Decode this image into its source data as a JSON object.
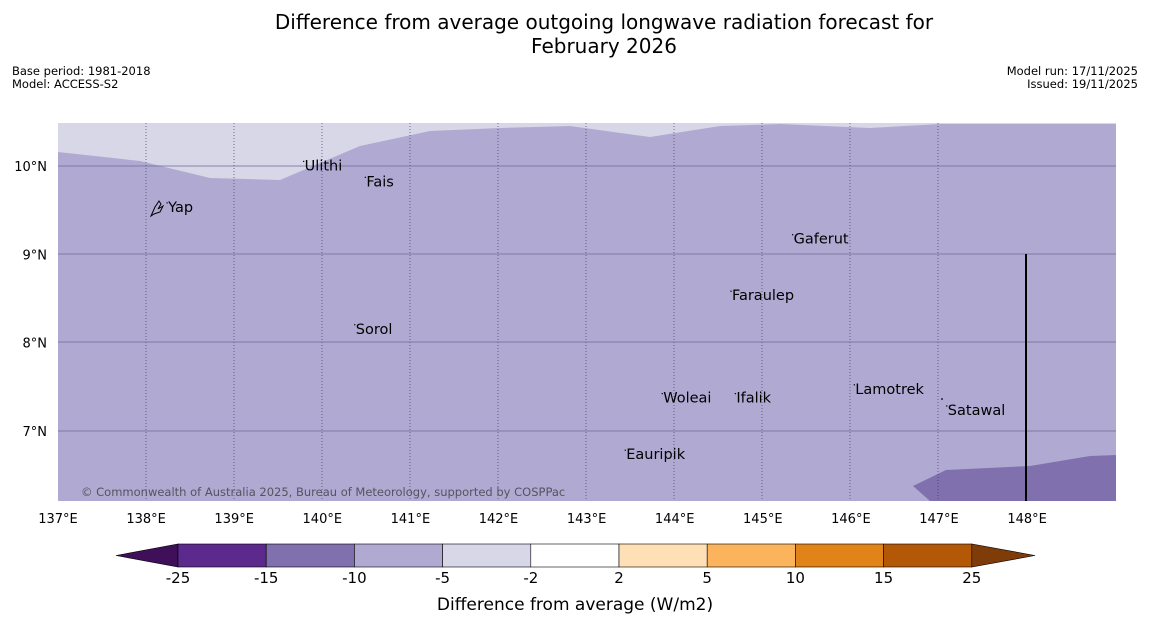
{
  "title": {
    "line1": "Difference from average outgoing longwave radiation forecast for",
    "line2": "February 2026"
  },
  "meta": {
    "base_period": "Base period: 1981-2018",
    "model": "Model: ACCESS-S2",
    "model_run": "Model run: 17/11/2025",
    "issued": "Issued: 19/11/2025"
  },
  "map": {
    "longitude_labels": [
      "137°E",
      "138°E",
      "139°E",
      "140°E",
      "141°E",
      "142°E",
      "143°E",
      "144°E",
      "145°E",
      "146°E",
      "147°E",
      "148°E"
    ],
    "latitude_labels": [
      "10°N",
      "9°N",
      "8°N",
      "7°N"
    ],
    "places": [
      {
        "name": "Yap",
        "lon": 138.25,
        "lat": 9.48
      },
      {
        "name": "Ulithi",
        "lon": 139.8,
        "lat": 9.95
      },
      {
        "name": "Fais",
        "lon": 140.5,
        "lat": 9.77
      },
      {
        "name": "Gaferut",
        "lon": 145.35,
        "lat": 9.12
      },
      {
        "name": "Faraulep",
        "lon": 144.65,
        "lat": 8.48
      },
      {
        "name": "Sorol",
        "lon": 140.38,
        "lat": 8.1
      },
      {
        "name": "Lamotrek",
        "lon": 146.05,
        "lat": 7.42
      },
      {
        "name": "Woleai",
        "lon": 143.87,
        "lat": 7.32
      },
      {
        "name": "Ifalik",
        "lon": 144.7,
        "lat": 7.32
      },
      {
        "name": "Satawal",
        "lon": 147.1,
        "lat": 7.18
      },
      {
        "name": "Eauripik",
        "lon": 143.45,
        "lat": 6.68
      }
    ],
    "copyright": "© Commonwealth of Australia 2025, Bureau of Meteorology, supported by COSPPac"
  },
  "legend": {
    "title": "Difference from average (W/m2)",
    "ticks": [
      "-25",
      "-15",
      "-10",
      "-5",
      "-2",
      "2",
      "5",
      "10",
      "15",
      "25"
    ],
    "colors": [
      "#3f0f5a",
      "#5b2a8c",
      "#8070ad",
      "#b0aad2",
      "#d7d7e8",
      "#ffffff",
      "#ffdfb5",
      "#fbb45c",
      "#e0841a",
      "#b35806",
      "#7f3b08"
    ]
  }
}
